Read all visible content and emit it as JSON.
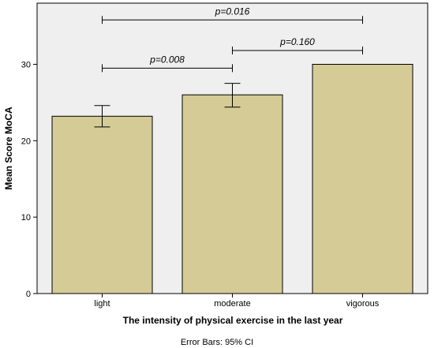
{
  "chart_data": {
    "type": "bar",
    "categories": [
      "light",
      "moderate",
      "vigorous"
    ],
    "values": [
      23.2,
      26.0,
      30.0
    ],
    "error_bars": [
      {
        "lower": 21.8,
        "upper": 24.6
      },
      {
        "lower": 24.4,
        "upper": 27.5
      },
      {
        "lower": 30.0,
        "upper": 30.0
      }
    ],
    "xlabel": "The intensity of physical exercise in the last year",
    "ylabel": "Mean Score MoCA",
    "ylim": [
      0,
      38
    ],
    "yticks": [
      0,
      10,
      20,
      30
    ],
    "footnote": "Error Bars: 95% CI",
    "significance": [
      {
        "from": "light",
        "to": "vigorous",
        "label": "p=0.016",
        "level": 35.8
      },
      {
        "from": "light",
        "to": "moderate",
        "label": "p=0.008",
        "level": 29.5
      },
      {
        "from": "moderate",
        "to": "vigorous",
        "label": "p=0.160",
        "level": 31.8
      }
    ],
    "colors": {
      "bar": "#d4cb96",
      "bar_edge": "#000000",
      "plot_bg": "#efefef",
      "page_bg": "#ffffff"
    }
  }
}
